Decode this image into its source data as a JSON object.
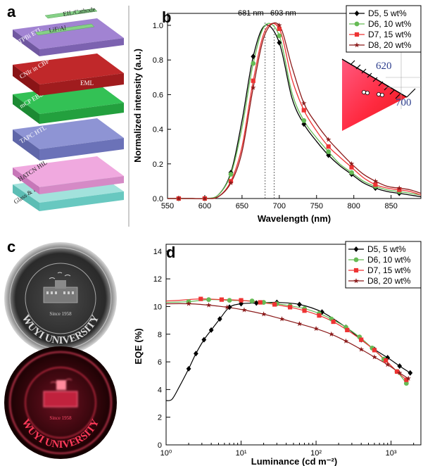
{
  "panels": {
    "a": {
      "label": "a"
    },
    "b": {
      "label": "b"
    },
    "c": {
      "label": "c"
    },
    "d": {
      "label": "d"
    }
  },
  "device_stack": {
    "layers": [
      {
        "name": "EIL/Cathode",
        "color": "#7ec87a"
      },
      {
        "name": "LiF/Al",
        "color": "#7ec87a"
      },
      {
        "name": "TPBi ETL",
        "color": "#9a7fc6"
      },
      {
        "name": "CNIr in CBP",
        "color": "#b8282a"
      },
      {
        "name": "EML",
        "color": "#b8282a"
      },
      {
        "name": "mCP EBL",
        "color": "#2cb24a"
      },
      {
        "name": "TAPC HTL",
        "color": "#7f85c8"
      },
      {
        "name": "HATCN HIL",
        "color": "#e190cf"
      },
      {
        "name": "Glass & ITO Anode",
        "color": "#78d0c8"
      }
    ]
  },
  "spectrum_annotations": {
    "peak1": "681 nm",
    "peak2": "693 nm"
  },
  "cie_inset": {
    "label1": "620",
    "label2": "700"
  },
  "logo": {
    "text": "WUYI UNIVERSITY",
    "since": "Since 1958"
  },
  "chart_data": [
    {
      "type": "line",
      "panel": "b",
      "xlabel": "Wavelength (nm)",
      "ylabel": "Normalized intensity (a.u.)",
      "xlim": [
        550,
        890
      ],
      "ylim": [
        0.0,
        1.05
      ],
      "xticks": [
        550,
        600,
        650,
        700,
        750,
        800,
        850
      ],
      "yticks": [
        0.0,
        0.2,
        0.4,
        0.6,
        0.8,
        1.0
      ],
      "ytick_labels": [
        "0.0",
        "0.2",
        "0.4",
        "0.6",
        "0.8",
        "1.0"
      ],
      "legend_position": "top-right",
      "series": [
        {
          "name": "D5, 5 wt%",
          "color": "#000000",
          "marker": "diamond",
          "x": [
            550,
            565,
            583,
            600,
            618,
            635,
            650,
            665,
            681,
            700,
            717,
            733,
            750,
            766,
            781,
            797,
            813,
            829,
            845,
            861,
            876,
            890
          ],
          "y": [
            0.0,
            0.0,
            0.0,
            0.0,
            0.02,
            0.15,
            0.45,
            0.82,
            1.0,
            0.9,
            0.58,
            0.43,
            0.33,
            0.25,
            0.19,
            0.14,
            0.09,
            0.06,
            0.04,
            0.03,
            0.02,
            0.01
          ]
        },
        {
          "name": "D6, 10 wt%",
          "color": "#66bb55",
          "marker": "circle",
          "x": [
            550,
            565,
            583,
            600,
            618,
            635,
            650,
            665,
            681,
            700,
            717,
            733,
            750,
            766,
            781,
            797,
            813,
            829,
            845,
            861,
            876,
            890
          ],
          "y": [
            0.0,
            0.0,
            0.0,
            0.0,
            0.02,
            0.14,
            0.41,
            0.78,
            1.0,
            0.94,
            0.61,
            0.45,
            0.35,
            0.27,
            0.2,
            0.15,
            0.1,
            0.07,
            0.05,
            0.04,
            0.03,
            0.02
          ]
        },
        {
          "name": "D7, 15 wt%",
          "color": "#ee3333",
          "marker": "square",
          "x": [
            550,
            565,
            583,
            600,
            618,
            635,
            650,
            665,
            681,
            700,
            717,
            733,
            750,
            766,
            781,
            797,
            813,
            829,
            845,
            861,
            876,
            890
          ],
          "y": [
            0.0,
            0.0,
            0.0,
            0.0,
            0.01,
            0.1,
            0.3,
            0.68,
            0.97,
            0.98,
            0.69,
            0.51,
            0.39,
            0.3,
            0.24,
            0.18,
            0.12,
            0.08,
            0.06,
            0.05,
            0.04,
            0.02
          ]
        },
        {
          "name": "D8, 20 wt%",
          "color": "#8b1a1a",
          "marker": "star",
          "x": [
            550,
            565,
            583,
            600,
            618,
            635,
            650,
            665,
            681,
            700,
            717,
            733,
            750,
            766,
            781,
            797,
            813,
            829,
            845,
            861,
            876,
            890
          ],
          "y": [
            0.0,
            0.0,
            0.0,
            0.0,
            0.01,
            0.09,
            0.27,
            0.64,
            0.95,
            1.0,
            0.76,
            0.55,
            0.43,
            0.34,
            0.27,
            0.2,
            0.14,
            0.1,
            0.07,
            0.06,
            0.05,
            0.03
          ]
        }
      ]
    },
    {
      "type": "line",
      "panel": "d",
      "xlabel": "Luminance (cd m⁻²)",
      "ylabel": "EQE (%)",
      "xscale": "log",
      "xlim": [
        1,
        2500
      ],
      "ylim": [
        0,
        14.5
      ],
      "xticks": [
        1,
        10,
        100,
        1000
      ],
      "xtick_labels": [
        "10⁰",
        "10¹",
        "10²",
        "10³"
      ],
      "yticks": [
        0,
        2,
        4,
        6,
        8,
        10,
        12,
        14
      ],
      "legend_position": "top-right",
      "series": [
        {
          "name": "D5, 5 wt%",
          "color": "#000000",
          "marker": "diamond",
          "x": [
            1.0,
            1.2,
            1.5,
            2.0,
            2.5,
            3.2,
            4.0,
            5.2,
            7.0,
            10,
            16,
            30,
            60,
            120,
            250,
            400,
            600,
            900,
            1300,
            1800
          ],
          "y": [
            3.2,
            3.3,
            4.2,
            5.5,
            6.6,
            7.6,
            8.3,
            9.1,
            9.95,
            10.2,
            10.25,
            10.3,
            10.15,
            9.6,
            8.5,
            7.6,
            6.9,
            6.3,
            5.7,
            5.2
          ]
        },
        {
          "name": "D6, 10 wt%",
          "color": "#66bb55",
          "marker": "circle",
          "x": [
            1.0,
            2.0,
            3.7,
            7,
            14,
            20,
            30,
            45,
            70,
            110,
            160,
            250,
            380,
            560,
            800,
            1200,
            1600
          ],
          "y": [
            10.3,
            10.35,
            10.5,
            10.45,
            10.4,
            10.3,
            10.2,
            10.05,
            9.85,
            9.5,
            9.1,
            8.5,
            7.8,
            7.0,
            6.2,
            5.3,
            4.45
          ]
        },
        {
          "name": "D7, 15 wt%",
          "color": "#ee3333",
          "marker": "square",
          "x": [
            1.0,
            1.5,
            2.9,
            5.5,
            10,
            18,
            28,
            45,
            70,
            110,
            170,
            260,
            400,
            600,
            850,
            1200,
            1600
          ],
          "y": [
            10.4,
            10.45,
            10.55,
            10.5,
            10.45,
            10.3,
            10.15,
            9.95,
            9.7,
            9.35,
            8.9,
            8.3,
            7.6,
            6.85,
            6.1,
            5.3,
            4.7
          ]
        },
        {
          "name": "D8, 20 wt%",
          "color": "#8b1a1a",
          "marker": "star",
          "x": [
            1.0,
            2.0,
            3.7,
            6.5,
            11,
            20,
            35,
            60,
            100,
            160,
            250,
            400,
            600,
            900,
            1300,
            1700
          ],
          "y": [
            10.2,
            10.2,
            10.1,
            9.95,
            9.75,
            9.45,
            9.1,
            8.75,
            8.4,
            8.0,
            7.5,
            6.9,
            6.35,
            5.8,
            5.2,
            4.8
          ]
        }
      ]
    }
  ]
}
